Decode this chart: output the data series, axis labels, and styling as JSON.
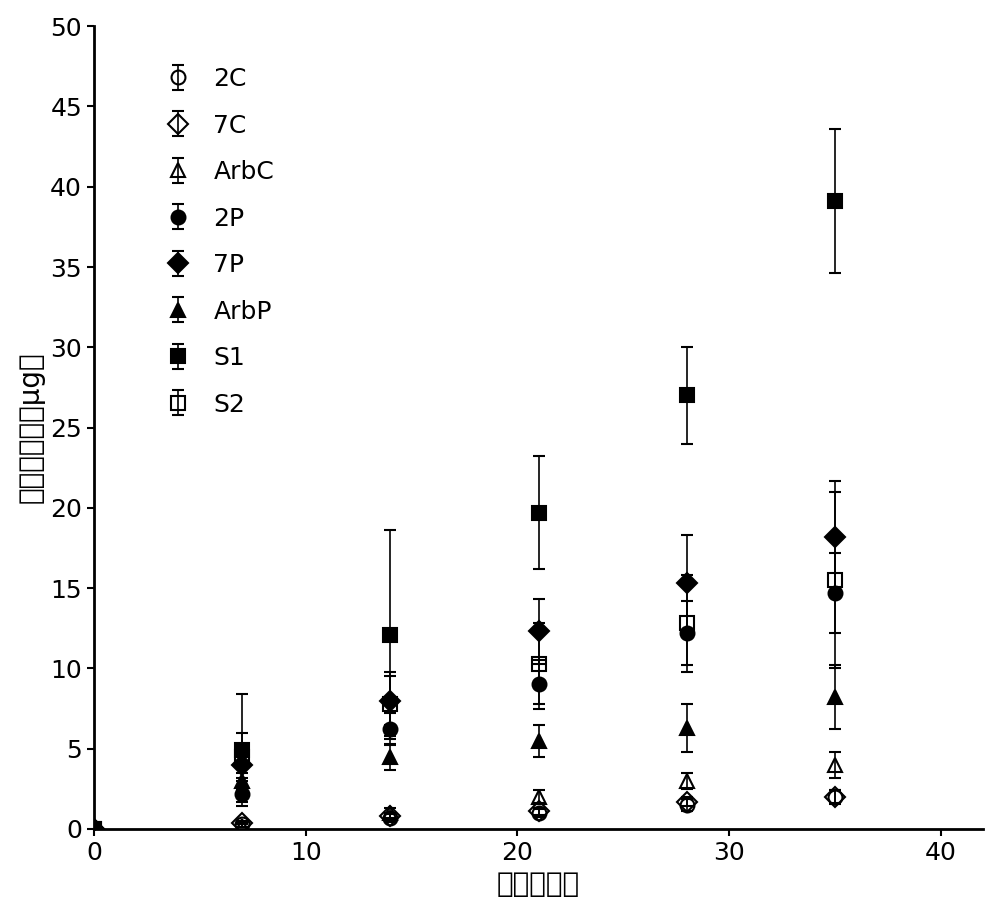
{
  "title": "",
  "xlabel": "时间（天）",
  "ylabel": "紫杉醇释放（μg）",
  "xlim": [
    0,
    42
  ],
  "ylim": [
    0,
    50
  ],
  "xticks": [
    0,
    10,
    20,
    30,
    40
  ],
  "yticks": [
    0,
    5,
    10,
    15,
    20,
    25,
    30,
    35,
    40,
    45,
    50
  ],
  "series": [
    {
      "label": "2C",
      "marker": "o",
      "filled": false,
      "color": "black",
      "x": [
        0,
        7,
        14,
        21,
        28,
        35
      ],
      "y": [
        0,
        0.3,
        0.7,
        1.0,
        1.5,
        2.0
      ],
      "yerr": [
        0,
        0.15,
        0.25,
        0.25,
        0.35,
        0.45
      ]
    },
    {
      "label": "7C",
      "marker": "D",
      "filled": false,
      "color": "black",
      "x": [
        0,
        7,
        14,
        21,
        28,
        35
      ],
      "y": [
        0,
        0.4,
        0.8,
        1.1,
        1.7,
        2.0
      ],
      "yerr": [
        0,
        0.1,
        0.2,
        0.2,
        0.3,
        0.4
      ]
    },
    {
      "label": "ArbC",
      "marker": "^",
      "filled": false,
      "color": "black",
      "x": [
        0,
        7,
        14,
        21,
        28,
        35
      ],
      "y": [
        0,
        0.2,
        1.0,
        2.0,
        3.0,
        4.0
      ],
      "yerr": [
        0,
        0.1,
        0.3,
        0.4,
        0.5,
        0.8
      ]
    },
    {
      "label": "2P",
      "marker": "o",
      "filled": true,
      "color": "black",
      "x": [
        0,
        7,
        14,
        21,
        28,
        35
      ],
      "y": [
        0,
        2.2,
        6.2,
        9.0,
        12.2,
        14.7
      ],
      "yerr": [
        0,
        0.5,
        1.0,
        1.5,
        2.0,
        2.5
      ]
    },
    {
      "label": "7P",
      "marker": "D",
      "filled": true,
      "color": "black",
      "x": [
        0,
        7,
        14,
        21,
        28,
        35
      ],
      "y": [
        0,
        4.0,
        8.0,
        12.3,
        15.3,
        18.2
      ],
      "yerr": [
        0,
        0.8,
        1.5,
        2.0,
        3.0,
        3.5
      ]
    },
    {
      "label": "ArbP",
      "marker": "^",
      "filled": true,
      "color": "black",
      "x": [
        0,
        7,
        14,
        21,
        28,
        35
      ],
      "y": [
        0,
        3.0,
        4.5,
        5.5,
        6.3,
        8.2
      ],
      "yerr": [
        0,
        0.5,
        0.8,
        1.0,
        1.5,
        2.0
      ]
    },
    {
      "label": "S1",
      "marker": "s",
      "filled": true,
      "color": "black",
      "x": [
        0,
        7,
        14,
        21,
        28,
        35
      ],
      "y": [
        0,
        4.9,
        12.1,
        19.7,
        27.0,
        39.1
      ],
      "yerr": [
        0,
        3.5,
        6.5,
        3.5,
        3.0,
        4.5
      ]
    },
    {
      "label": "S2",
      "marker": "s",
      "filled": false,
      "color": "black",
      "x": [
        0,
        7,
        14,
        21,
        28,
        35
      ],
      "y": [
        0,
        4.5,
        7.8,
        10.3,
        12.8,
        15.5
      ],
      "yerr": [
        0,
        1.5,
        2.0,
        2.5,
        3.0,
        5.5
      ]
    }
  ],
  "figsize": [
    10.0,
    9.15
  ],
  "dpi": 100,
  "background_color": "#ffffff",
  "fontsize_label": 20,
  "fontsize_tick": 18,
  "fontsize_legend": 18,
  "markersize": 10,
  "capsize": 4,
  "elinewidth": 1.2
}
